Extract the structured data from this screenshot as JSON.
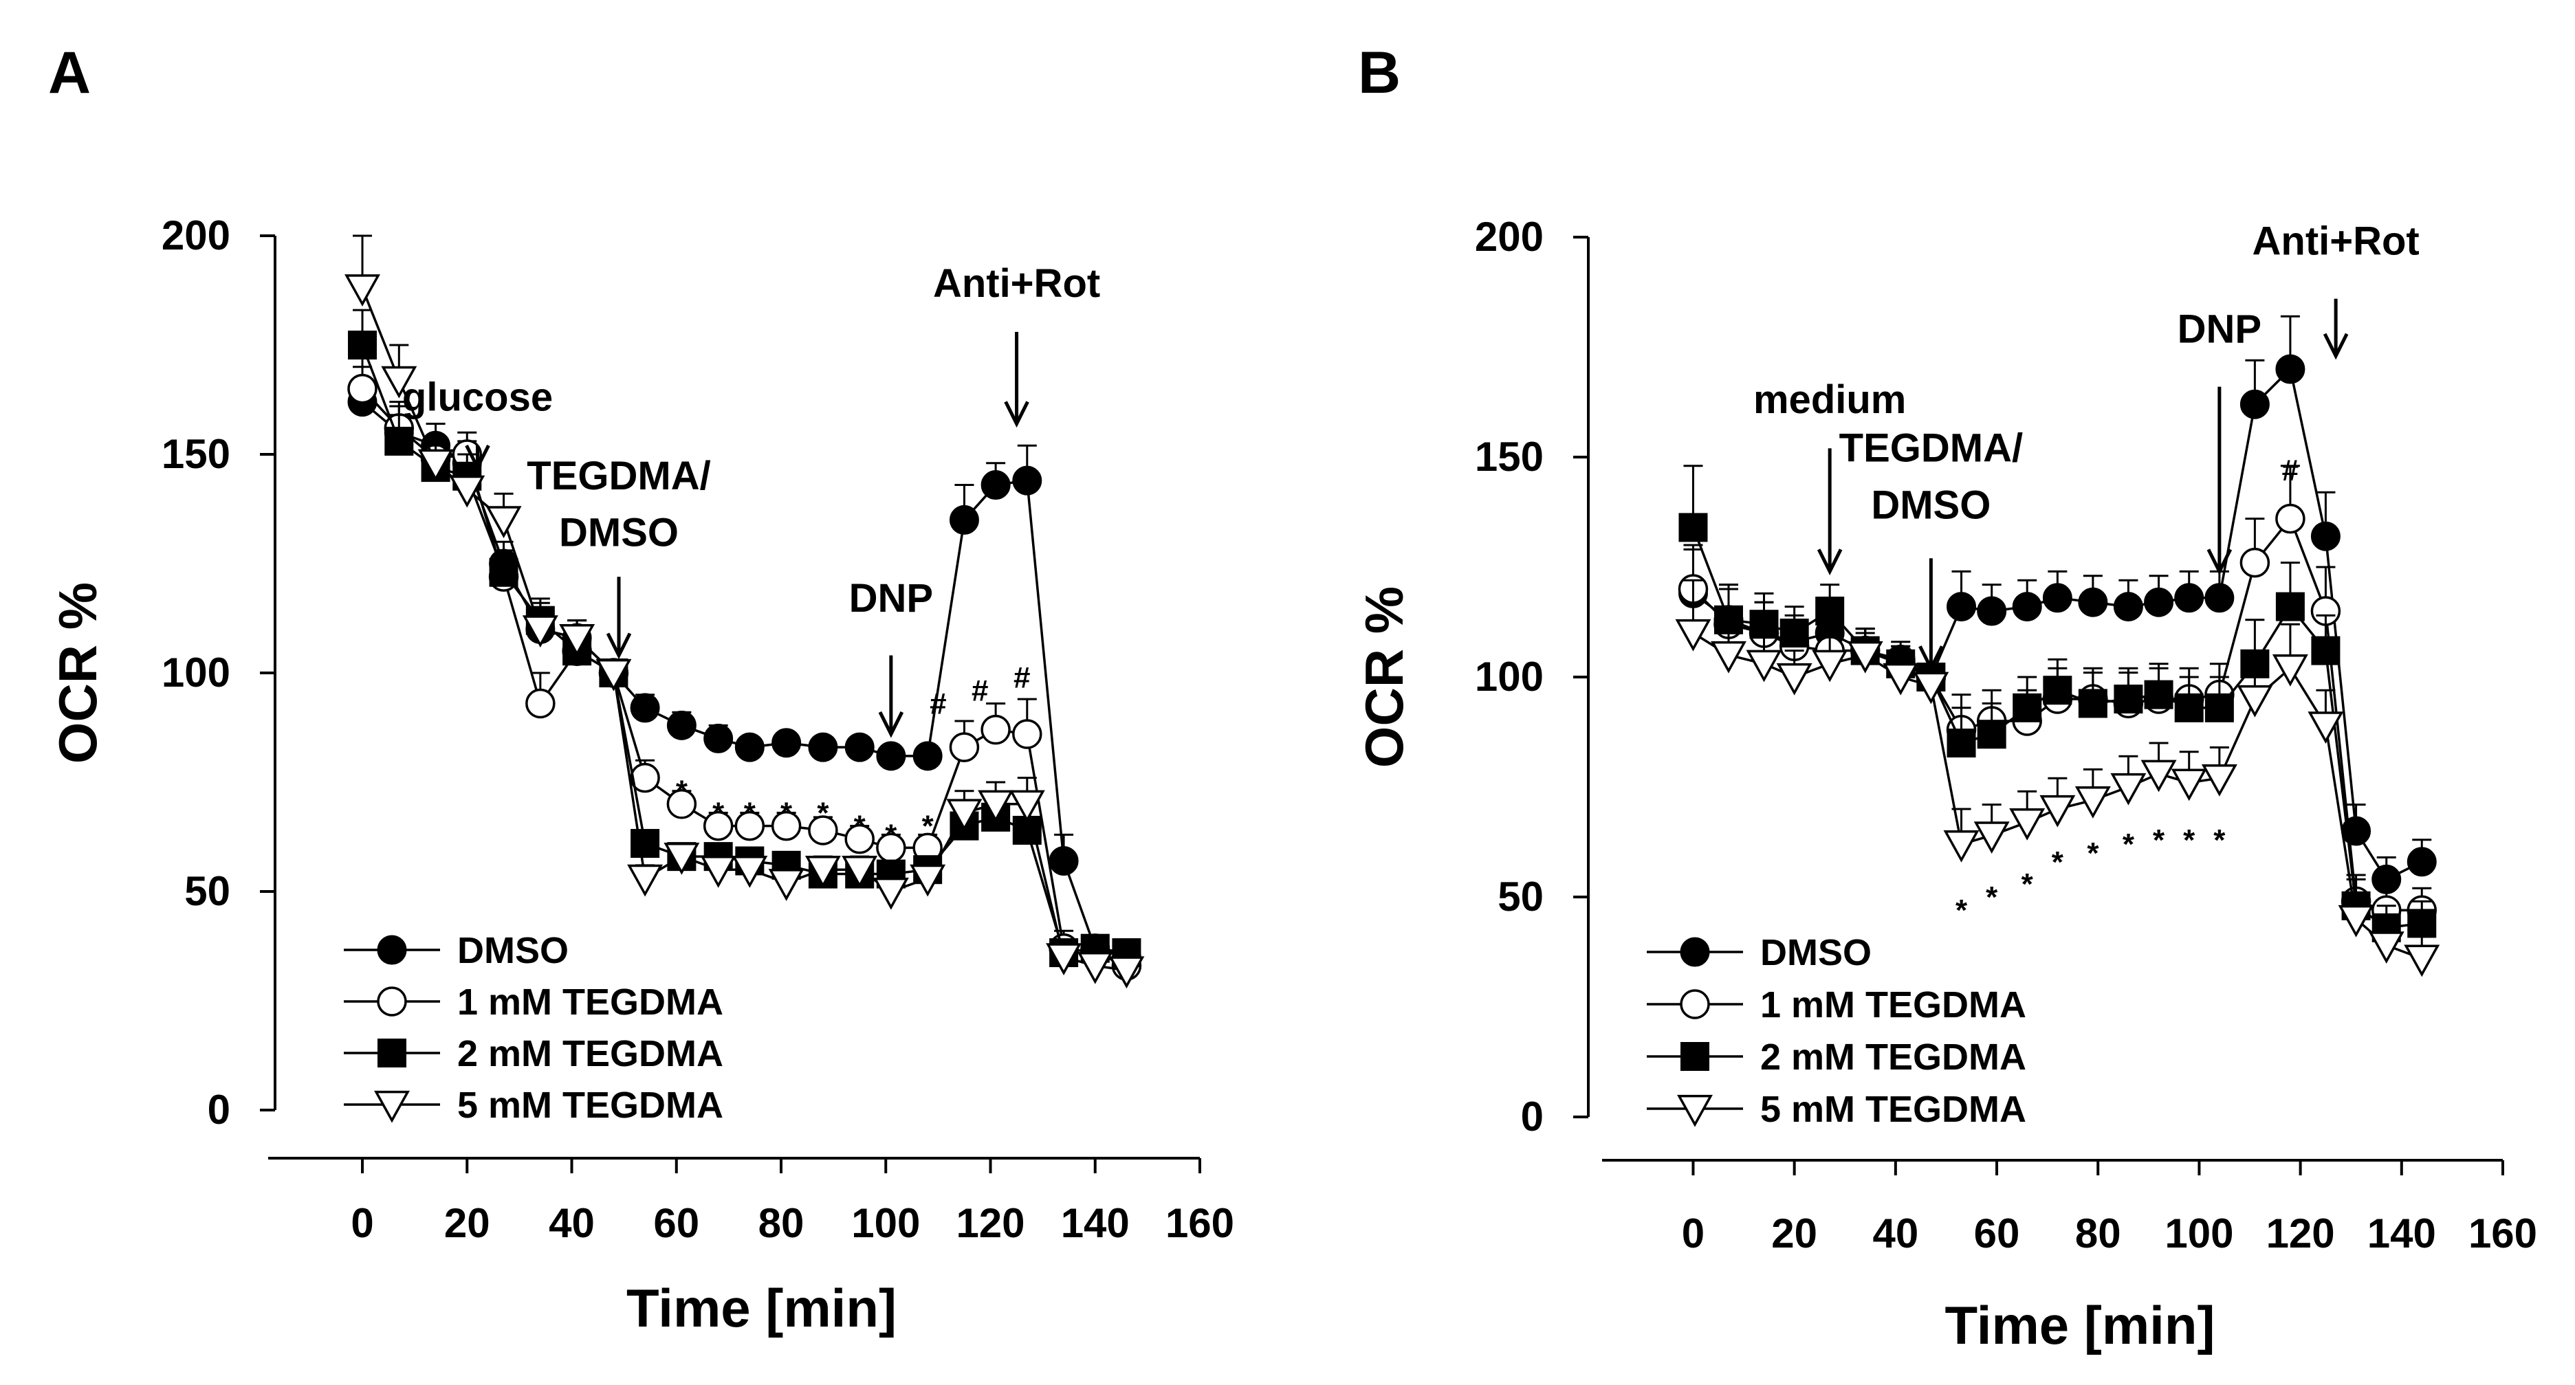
{
  "figure": {
    "panels": [
      "A",
      "B"
    ]
  },
  "chart_data": [
    {
      "type": "line",
      "panel": "A",
      "xlabel": "Time [min]",
      "ylabel": "OCR %",
      "xlim": [
        -18,
        160
      ],
      "ylim": [
        0,
        200
      ],
      "xticks": [
        0,
        20,
        40,
        60,
        80,
        100,
        120,
        140,
        160
      ],
      "yticks": [
        0,
        50,
        100,
        150,
        200
      ],
      "legend_position": "bottom-left",
      "series": [
        {
          "name": "DMSO",
          "marker": "filled-circle",
          "x": [
            0,
            7,
            14,
            20,
            27,
            34,
            41,
            48,
            54,
            61,
            68,
            74,
            81,
            88,
            95,
            101,
            108,
            115,
            121,
            127,
            134,
            140,
            146
          ],
          "y": [
            162,
            155,
            152,
            148,
            125,
            110,
            108,
            100,
            92,
            88,
            85,
            83,
            84,
            83,
            83,
            81,
            81,
            135,
            143,
            144,
            57,
            37,
            35
          ],
          "err": [
            8,
            6,
            5,
            5,
            5,
            5,
            4,
            0,
            3,
            3,
            3,
            2,
            2,
            2,
            2,
            2,
            2,
            8,
            5,
            8,
            6,
            3,
            3
          ]
        },
        {
          "name": "1 mM TEGDMA",
          "marker": "open-circle",
          "x": [
            0,
            7,
            14,
            20,
            27,
            34,
            41,
            48,
            54,
            61,
            68,
            74,
            81,
            88,
            95,
            101,
            108,
            115,
            121,
            127,
            134,
            140,
            146
          ],
          "y": [
            165,
            156,
            149,
            150,
            122,
            93,
            105,
            100,
            76,
            70,
            65,
            65,
            65,
            64,
            62,
            60,
            60,
            83,
            87,
            86,
            37,
            36,
            33
          ],
          "err": [
            7,
            6,
            5,
            5,
            6,
            7,
            4,
            0,
            4,
            3,
            3,
            3,
            3,
            3,
            3,
            3,
            3,
            6,
            6,
            8,
            4,
            3,
            3
          ]
        },
        {
          "name": "2 mM TEGDMA",
          "marker": "filled-square",
          "x": [
            0,
            7,
            14,
            20,
            27,
            34,
            41,
            48,
            54,
            61,
            68,
            74,
            81,
            88,
            95,
            101,
            108,
            115,
            121,
            127,
            134,
            140,
            146
          ],
          "y": [
            175,
            153,
            147,
            145,
            123,
            112,
            105,
            100,
            61,
            58,
            58,
            57,
            56,
            54,
            54,
            54,
            55,
            65,
            67,
            64,
            36,
            37,
            36
          ],
          "err": [
            8,
            6,
            5,
            5,
            5,
            5,
            4,
            0,
            3,
            3,
            3,
            3,
            3,
            3,
            3,
            3,
            3,
            5,
            5,
            6,
            3,
            3,
            3
          ]
        },
        {
          "name": "5 mM TEGDMA",
          "marker": "open-triangle-down",
          "x": [
            0,
            7,
            14,
            20,
            27,
            34,
            41,
            48,
            54,
            61,
            68,
            74,
            81,
            88,
            95,
            101,
            108,
            115,
            121,
            127,
            134,
            140,
            146
          ],
          "y": [
            188,
            167,
            148,
            142,
            135,
            110,
            108,
            100,
            53,
            58,
            55,
            55,
            52,
            55,
            55,
            50,
            53,
            68,
            70,
            70,
            35,
            33,
            32
          ],
          "err": [
            12,
            8,
            6,
            6,
            6,
            6,
            4,
            0,
            3,
            3,
            3,
            3,
            3,
            3,
            3,
            3,
            3,
            5,
            5,
            6,
            3,
            3,
            3
          ]
        }
      ],
      "annotations": [
        {
          "text": "glucose",
          "x": 22,
          "y": 160
        },
        {
          "text": "TEGDMA/",
          "x": 49,
          "y": 142
        },
        {
          "text": "DMSO",
          "x": 49,
          "y": 129
        },
        {
          "text": "DNP",
          "x": 101,
          "y": 114
        },
        {
          "text": "Anti+Rot",
          "x": 125,
          "y": 186
        }
      ],
      "significance_marks": [
        {
          "text": "*",
          "x": 61,
          "y": 73
        },
        {
          "text": "*",
          "x": 68,
          "y": 68
        },
        {
          "text": "*",
          "x": 74,
          "y": 68
        },
        {
          "text": "*",
          "x": 81,
          "y": 68
        },
        {
          "text": "*",
          "x": 88,
          "y": 68
        },
        {
          "text": "*",
          "x": 95,
          "y": 65
        },
        {
          "text": "*",
          "x": 101,
          "y": 63
        },
        {
          "text": "*",
          "x": 108,
          "y": 65
        },
        {
          "text": "#",
          "x": 110,
          "y": 93
        },
        {
          "text": "#",
          "x": 118,
          "y": 96
        },
        {
          "text": "#",
          "x": 126,
          "y": 99
        }
      ]
    },
    {
      "type": "line",
      "panel": "B",
      "xlabel": "Time [min]",
      "ylabel": "OCR %",
      "xlim": [
        -18,
        160
      ],
      "ylim": [
        0,
        200
      ],
      "xticks": [
        0,
        20,
        40,
        60,
        80,
        100,
        120,
        140,
        160
      ],
      "yticks": [
        0,
        50,
        100,
        150,
        200
      ],
      "legend_position": "bottom-left",
      "series": [
        {
          "name": "DMSO",
          "marker": "filled-circle",
          "x": [
            0,
            7,
            14,
            20,
            27,
            34,
            41,
            47,
            53,
            59,
            66,
            72,
            79,
            86,
            92,
            98,
            104,
            111,
            118,
            125,
            131,
            137,
            144
          ],
          "y": [
            119,
            113,
            110,
            108,
            110,
            106,
            104,
            100,
            116,
            115,
            116,
            118,
            117,
            116,
            117,
            118,
            118,
            162,
            170,
            132,
            65,
            54,
            58
          ],
          "err": [
            10,
            8,
            7,
            6,
            6,
            5,
            4,
            0,
            8,
            6,
            6,
            6,
            6,
            6,
            6,
            6,
            6,
            10,
            12,
            10,
            6,
            5,
            5
          ]
        },
        {
          "name": "1 mM TEGDMA",
          "marker": "open-circle",
          "x": [
            0,
            7,
            14,
            20,
            27,
            34,
            41,
            47,
            53,
            59,
            66,
            72,
            79,
            86,
            92,
            98,
            104,
            111,
            118,
            125,
            131,
            137,
            144
          ],
          "y": [
            120,
            112,
            110,
            107,
            106,
            106,
            103,
            100,
            88,
            90,
            90,
            95,
            95,
            94,
            95,
            95,
            96,
            126,
            136,
            115,
            49,
            47,
            47
          ],
          "err": [
            10,
            8,
            7,
            6,
            6,
            5,
            4,
            0,
            8,
            7,
            7,
            7,
            7,
            7,
            7,
            7,
            7,
            10,
            12,
            10,
            6,
            5,
            5
          ]
        },
        {
          "name": "2 mM TEGDMA",
          "marker": "filled-square",
          "x": [
            0,
            7,
            14,
            20,
            27,
            34,
            41,
            47,
            53,
            59,
            66,
            72,
            79,
            86,
            92,
            98,
            104,
            111,
            118,
            125,
            131,
            137,
            144
          ],
          "y": [
            134,
            113,
            112,
            110,
            115,
            106,
            103,
            100,
            85,
            87,
            93,
            97,
            94,
            95,
            96,
            93,
            93,
            103,
            116,
            106,
            48,
            43,
            44
          ],
          "err": [
            14,
            8,
            7,
            6,
            6,
            5,
            4,
            0,
            8,
            7,
            7,
            7,
            7,
            7,
            7,
            7,
            7,
            10,
            10,
            8,
            6,
            5,
            5
          ]
        },
        {
          "name": "5 mM TEGDMA",
          "marker": "open-triangle-down",
          "x": [
            0,
            7,
            14,
            20,
            27,
            34,
            41,
            47,
            53,
            59,
            66,
            72,
            79,
            86,
            92,
            98,
            104,
            111,
            118,
            125,
            131,
            137,
            144
          ],
          "y": [
            110,
            105,
            103,
            100,
            103,
            105,
            100,
            98,
            62,
            64,
            67,
            70,
            72,
            75,
            78,
            76,
            77,
            95,
            102,
            89,
            45,
            39,
            36
          ],
          "err": [
            12,
            8,
            7,
            6,
            6,
            5,
            4,
            0,
            8,
            7,
            7,
            7,
            7,
            7,
            7,
            7,
            7,
            10,
            10,
            8,
            6,
            5,
            5
          ]
        }
      ],
      "annotations": [
        {
          "text": "medium",
          "x": 27,
          "y": 160
        },
        {
          "text": "TEGDMA/",
          "x": 47,
          "y": 149
        },
        {
          "text": "DMSO",
          "x": 47,
          "y": 136
        },
        {
          "text": "DNP",
          "x": 104,
          "y": 176
        },
        {
          "text": "Anti+Rot",
          "x": 127,
          "y": 196
        }
      ],
      "significance_marks": [
        {
          "text": "*",
          "x": 53,
          "y": 47
        },
        {
          "text": "*",
          "x": 59,
          "y": 50
        },
        {
          "text": "*",
          "x": 66,
          "y": 53
        },
        {
          "text": "*",
          "x": 72,
          "y": 58
        },
        {
          "text": "*",
          "x": 79,
          "y": 60
        },
        {
          "text": "*",
          "x": 86,
          "y": 62
        },
        {
          "text": "*",
          "x": 92,
          "y": 63
        },
        {
          "text": "*",
          "x": 98,
          "y": 63
        },
        {
          "text": "*",
          "x": 104,
          "y": 63
        },
        {
          "text": "#",
          "x": 118,
          "y": 147
        }
      ]
    }
  ]
}
